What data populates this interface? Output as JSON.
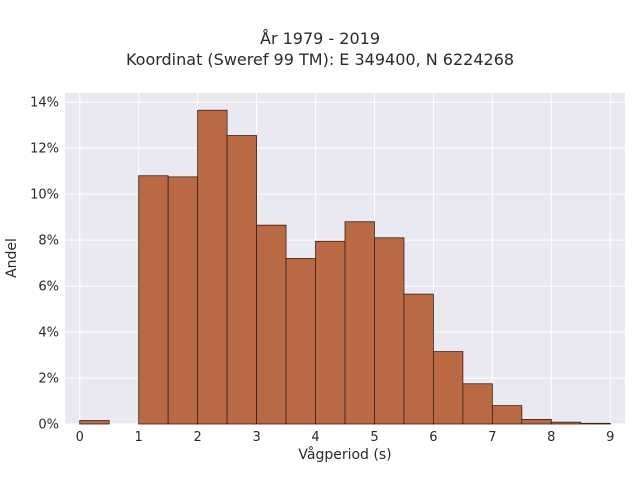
{
  "chart_data": {
    "type": "bar",
    "title_lines": [
      "År 1979 - 2019",
      "Koordinat (Sweref 99 TM): E 349400, N 6224268"
    ],
    "xlabel": "Vågperiod (s)",
    "ylabel": "Andel",
    "xlim": [
      -0.25,
      9.25
    ],
    "ylim": [
      0,
      14.4
    ],
    "xticks": [
      0,
      1,
      2,
      3,
      4,
      5,
      6,
      7,
      8,
      9
    ],
    "yticks": [
      0,
      2,
      4,
      6,
      8,
      10,
      12,
      14
    ],
    "ytick_suffix": "%",
    "bin_width": 0.5,
    "bins": [
      {
        "x0": 0.0,
        "value": 0.15
      },
      {
        "x0": 0.5,
        "value": 0.0
      },
      {
        "x0": 1.0,
        "value": 10.8
      },
      {
        "x0": 1.5,
        "value": 10.75
      },
      {
        "x0": 2.0,
        "value": 13.65
      },
      {
        "x0": 2.5,
        "value": 12.55
      },
      {
        "x0": 3.0,
        "value": 8.65
      },
      {
        "x0": 3.5,
        "value": 7.2
      },
      {
        "x0": 4.0,
        "value": 7.95
      },
      {
        "x0": 4.5,
        "value": 8.8
      },
      {
        "x0": 5.0,
        "value": 8.1
      },
      {
        "x0": 5.5,
        "value": 5.65
      },
      {
        "x0": 6.0,
        "value": 3.15
      },
      {
        "x0": 6.5,
        "value": 1.75
      },
      {
        "x0": 7.0,
        "value": 0.8
      },
      {
        "x0": 7.5,
        "value": 0.2
      },
      {
        "x0": 8.0,
        "value": 0.08
      },
      {
        "x0": 8.5,
        "value": 0.03
      }
    ],
    "grid": true,
    "colors": {
      "bar_fill": "#b96a45",
      "bar_stroke": "#3b1f14",
      "plot_bg": "#e9e9f1",
      "grid": "#ffffff"
    }
  }
}
